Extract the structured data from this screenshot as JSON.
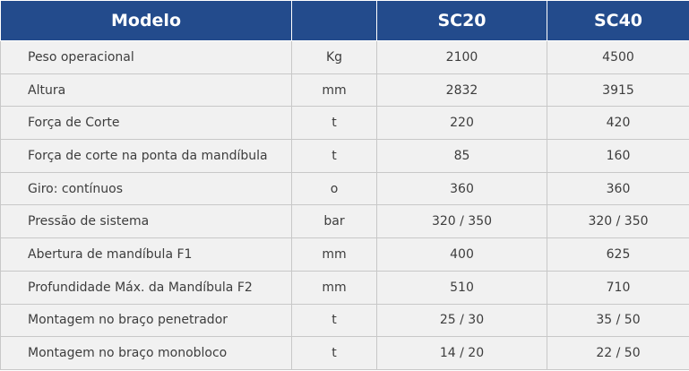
{
  "table": {
    "header": [
      "Modelo",
      "SC20",
      "SC40"
    ],
    "rows": [
      [
        "Peso operacional",
        "Kg",
        "2100",
        "4500"
      ],
      [
        "Altura",
        "mm",
        "2832",
        "3915"
      ],
      [
        "Força de Corte",
        "t",
        "220",
        "420"
      ],
      [
        "Força de corte na ponta da mandíbula",
        "t",
        "85",
        "160"
      ],
      [
        "Giro: contínuos",
        "o",
        "360",
        "360"
      ],
      [
        "Pressão de sistema",
        "bar",
        "320 / 350",
        "320 / 350"
      ],
      [
        "Abertura de mandíbula F1",
        "mm",
        "400",
        "625"
      ],
      [
        "Profundidade Máx. da Mandíbula F2",
        "mm",
        "510",
        "710"
      ],
      [
        "Montagem no braço penetrador",
        "t",
        "25 / 30",
        "35 / 50"
      ],
      [
        "Montagem no braço monobloco",
        "t",
        "14 / 20",
        "22 / 50"
      ]
    ]
  }
}
